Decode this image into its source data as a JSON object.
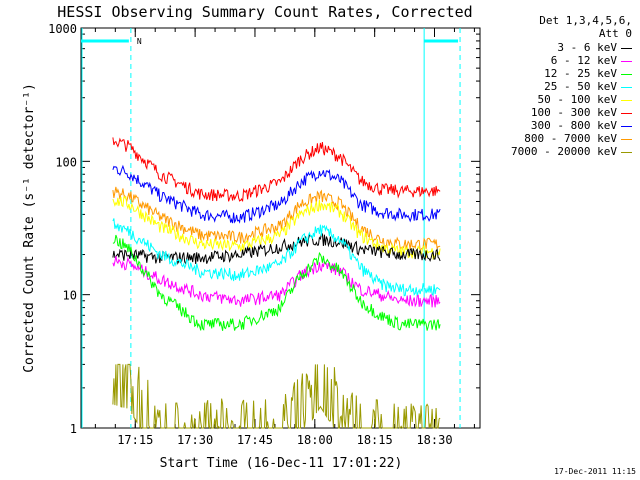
{
  "chart_data": {
    "type": "line",
    "title": "HESSI Observing Summary Count Rates, Corrected",
    "xlabel": "Start Time (16-Dec-11 17:01:22)",
    "ylabel": "Corrected Count Rate (s⁻¹ detector⁻¹)",
    "yscale": "log",
    "ylim": [
      1,
      1000
    ],
    "xlim_minutes": [
      0,
      100
    ],
    "x_ticks": [
      "17:15",
      "17:30",
      "17:45",
      "18:00",
      "18:15",
      "18:30"
    ],
    "x_tick_minutes": [
      13.6,
      28.6,
      43.6,
      58.6,
      73.6,
      88.6
    ],
    "y_ticks": [
      "1",
      "10",
      "100",
      "1000"
    ],
    "y_tick_values": [
      1,
      10,
      100,
      1000
    ],
    "x_minutes": [
      8,
      12,
      20,
      30,
      40,
      50,
      55,
      60,
      65,
      70,
      75,
      80,
      85,
      90
    ],
    "series": [
      {
        "name": "3 - 6 keV",
        "color": "#000000",
        "values": [
          20,
          20,
          19,
          19,
          20,
          23,
          25,
          26,
          25,
          22,
          21,
          20,
          20,
          20
        ]
      },
      {
        "name": "6 - 12 keV",
        "color": "#ff00ff",
        "values": [
          18,
          17,
          13,
          10,
          9,
          10,
          14,
          17,
          15,
          11,
          10,
          9,
          9,
          9
        ]
      },
      {
        "name": "12 - 25 keV",
        "color": "#00ff00",
        "values": [
          27,
          22,
          10,
          6,
          6,
          8,
          14,
          19,
          15,
          9,
          7,
          6,
          6,
          6
        ]
      },
      {
        "name": "25 - 50 keV",
        "color": "#00ffff",
        "values": [
          34,
          30,
          20,
          15,
          14,
          17,
          25,
          31,
          26,
          16,
          12,
          11,
          11,
          11
        ]
      },
      {
        "name": "50 - 100 keV",
        "color": "#ffff00",
        "values": [
          52,
          48,
          32,
          24,
          23,
          28,
          40,
          48,
          42,
          28,
          23,
          21,
          21,
          21
        ]
      },
      {
        "name": "100 - 300 keV",
        "color": "#ff0000",
        "values": [
          145,
          130,
          80,
          57,
          55,
          70,
          105,
          128,
          108,
          72,
          62,
          60,
          60,
          60
        ]
      },
      {
        "name": "300 - 800 keV",
        "color": "#0000ff",
        "values": [
          90,
          82,
          55,
          40,
          38,
          48,
          70,
          85,
          72,
          48,
          42,
          40,
          40,
          40
        ]
      },
      {
        "name": "800 - 7000 keV",
        "color": "#ff9900",
        "values": [
          60,
          55,
          38,
          28,
          27,
          33,
          48,
          55,
          48,
          32,
          26,
          24,
          24,
          24
        ]
      },
      {
        "name": "7000 - 20000 keV",
        "color": "#999900",
        "values": [
          2.7,
          2.5,
          1,
          1,
          1,
          1,
          1.5,
          2.6,
          1.5,
          1,
          1,
          1,
          1,
          1
        ]
      }
    ],
    "vertical_markers_minutes": [
      12.5,
      86,
      95
    ],
    "marker_label": "N"
  },
  "legend": {
    "header_line1": "Det 1,3,4,5,6,",
    "header_line2": "Att 0",
    "entries": [
      {
        "label": "3 - 6 keV",
        "color": "#000000"
      },
      {
        "label": "6 - 12 keV",
        "color": "#ff00ff"
      },
      {
        "label": "12 - 25 keV",
        "color": "#00ff00"
      },
      {
        "label": "25 - 50 keV",
        "color": "#00ffff"
      },
      {
        "label": "50 - 100 keV",
        "color": "#ffff00"
      },
      {
        "label": "100 - 300 keV",
        "color": "#ff0000"
      },
      {
        "label": "300 - 800 keV",
        "color": "#0000ff"
      },
      {
        "label": "800 - 7000 keV",
        "color": "#ff9900"
      },
      {
        "label": "7000 - 20000 keV",
        "color": "#999900"
      }
    ]
  },
  "timestamp": "17-Dec-2011 11:15",
  "colors": {
    "axes": "#000000",
    "markers": "#00ffff",
    "background": "#ffffff"
  }
}
